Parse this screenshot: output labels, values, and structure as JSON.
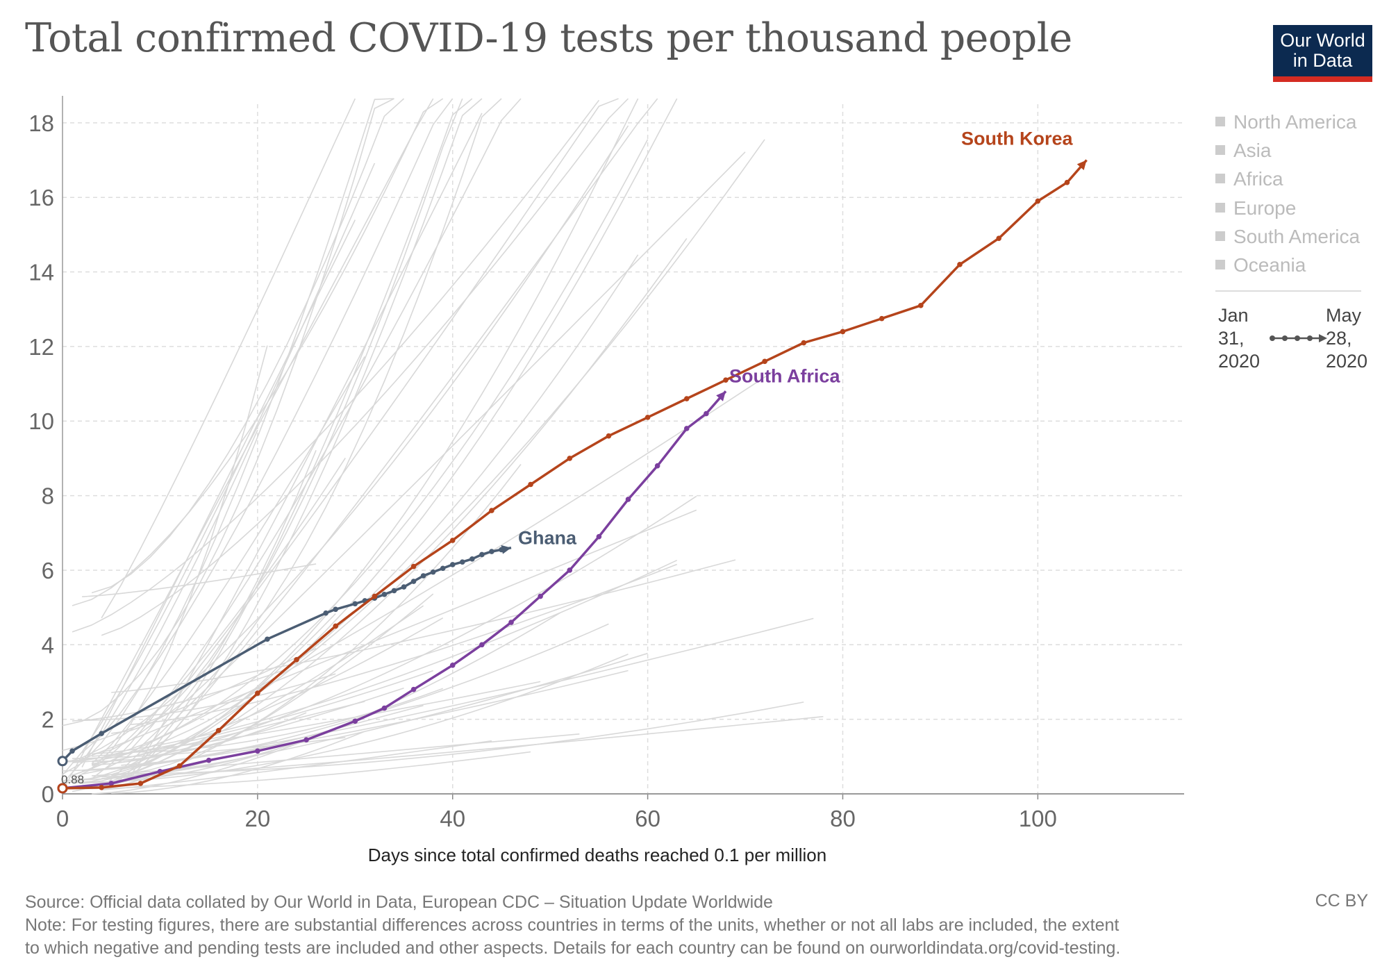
{
  "header": {
    "title": "Total confirmed COVID-19 tests per thousand people",
    "logo_line1": "Our World",
    "logo_line2": "in Data"
  },
  "footer": {
    "source": "Source: Official data collated by Our World in Data, European CDC – Situation Update Worldwide",
    "note_line1": "Note: For testing figures, there are substantial differences across countries in terms of the units, whether or not all labs are included, the extent",
    "note_line2": "to which negative and pending tests are included and other aspects. Details for each country can be found on ourworldindata.org/covid-testing.",
    "license": "CC BY"
  },
  "legend": {
    "items": [
      "North America",
      "Asia",
      "Africa",
      "Europe",
      "South America",
      "Oceania"
    ],
    "timeline_start": "Jan\n31,\n2020",
    "timeline_end": "May\n28,\n2020"
  },
  "colors": {
    "ghana": "#4b5d73",
    "south_africa": "#7b3f9e",
    "south_korea": "#b5441b",
    "background_lines": "#d8d8d8",
    "grid": "#dddddd"
  },
  "chart_data": {
    "type": "line",
    "title": "Total confirmed COVID-19 tests per thousand people",
    "xlabel": "Days since total confirmed deaths reached 0.1 per million",
    "ylabel": "",
    "xlim": [
      0,
      115
    ],
    "ylim": [
      0,
      18.5
    ],
    "x_ticks": [
      0,
      20,
      40,
      60,
      80,
      100
    ],
    "y_ticks": [
      0,
      2,
      4,
      6,
      8,
      10,
      12,
      14,
      16,
      18
    ],
    "grid": true,
    "legend_position": "right",
    "start_value_label": "0.88",
    "series": [
      {
        "name": "Ghana",
        "x": [
          0,
          1,
          4,
          21,
          27,
          28,
          30,
          31,
          32,
          33,
          34,
          35,
          36,
          37,
          38,
          39,
          40,
          41,
          42,
          43,
          44,
          45,
          46
        ],
        "y": [
          0.88,
          1.15,
          1.62,
          4.15,
          4.85,
          4.95,
          5.1,
          5.18,
          5.25,
          5.35,
          5.45,
          5.55,
          5.7,
          5.85,
          5.95,
          6.05,
          6.15,
          6.22,
          6.3,
          6.42,
          6.5,
          6.55,
          6.6
        ],
        "highlight": true
      },
      {
        "name": "South Africa",
        "x": [
          0,
          5,
          10,
          15,
          20,
          25,
          30,
          33,
          36,
          40,
          43,
          46,
          49,
          52,
          55,
          58,
          61,
          64,
          66,
          68
        ],
        "y": [
          0.15,
          0.28,
          0.6,
          0.9,
          1.15,
          1.45,
          1.95,
          2.3,
          2.8,
          3.45,
          4.0,
          4.6,
          5.3,
          6.0,
          6.9,
          7.9,
          8.8,
          9.8,
          10.2,
          10.8
        ],
        "highlight": true
      },
      {
        "name": "South Korea",
        "x": [
          0,
          4,
          8,
          12,
          16,
          20,
          24,
          28,
          32,
          36,
          40,
          44,
          48,
          52,
          56,
          60,
          64,
          68,
          72,
          76,
          80,
          84,
          88,
          92,
          96,
          100,
          103,
          105
        ],
        "y": [
          0.15,
          0.17,
          0.28,
          0.75,
          1.7,
          2.7,
          3.6,
          4.5,
          5.3,
          6.1,
          6.8,
          7.6,
          8.3,
          9.0,
          9.6,
          10.1,
          10.6,
          11.1,
          11.6,
          12.1,
          12.4,
          12.75,
          13.1,
          14.2,
          14.9,
          15.9,
          16.4,
          17.0
        ],
        "highlight": true
      }
    ]
  }
}
